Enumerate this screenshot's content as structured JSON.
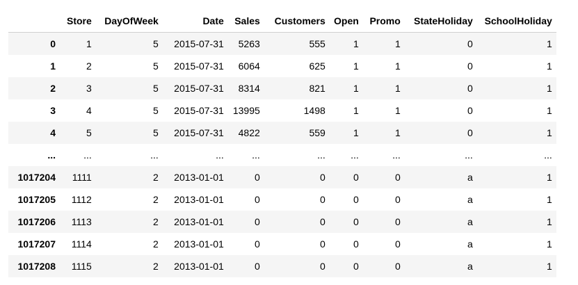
{
  "table": {
    "columns": [
      "Store",
      "DayOfWeek",
      "Date",
      "Sales",
      "Customers",
      "Open",
      "Promo",
      "StateHoliday",
      "SchoolHoliday"
    ],
    "rows": [
      {
        "index": "0",
        "cells": [
          "1",
          "5",
          "2015-07-31",
          "5263",
          "555",
          "1",
          "1",
          "0",
          "1"
        ]
      },
      {
        "index": "1",
        "cells": [
          "2",
          "5",
          "2015-07-31",
          "6064",
          "625",
          "1",
          "1",
          "0",
          "1"
        ]
      },
      {
        "index": "2",
        "cells": [
          "3",
          "5",
          "2015-07-31",
          "8314",
          "821",
          "1",
          "1",
          "0",
          "1"
        ]
      },
      {
        "index": "3",
        "cells": [
          "4",
          "5",
          "2015-07-31",
          "13995",
          "1498",
          "1",
          "1",
          "0",
          "1"
        ]
      },
      {
        "index": "4",
        "cells": [
          "5",
          "5",
          "2015-07-31",
          "4822",
          "559",
          "1",
          "1",
          "0",
          "1"
        ]
      },
      {
        "index": "...",
        "cells": [
          "...",
          "...",
          "...",
          "...",
          "...",
          "...",
          "...",
          "...",
          "..."
        ]
      },
      {
        "index": "1017204",
        "cells": [
          "1111",
          "2",
          "2013-01-01",
          "0",
          "0",
          "0",
          "0",
          "a",
          "1"
        ]
      },
      {
        "index": "1017205",
        "cells": [
          "1112",
          "2",
          "2013-01-01",
          "0",
          "0",
          "0",
          "0",
          "a",
          "1"
        ]
      },
      {
        "index": "1017206",
        "cells": [
          "1113",
          "2",
          "2013-01-01",
          "0",
          "0",
          "0",
          "0",
          "a",
          "1"
        ]
      },
      {
        "index": "1017207",
        "cells": [
          "1114",
          "2",
          "2013-01-01",
          "0",
          "0",
          "0",
          "0",
          "a",
          "1"
        ]
      },
      {
        "index": "1017208",
        "cells": [
          "1115",
          "2",
          "2013-01-01",
          "0",
          "0",
          "0",
          "0",
          "a",
          "1"
        ]
      }
    ]
  },
  "colors": {
    "stripe": "#f5f5f5",
    "header_rule": "#cfcfcf"
  }
}
